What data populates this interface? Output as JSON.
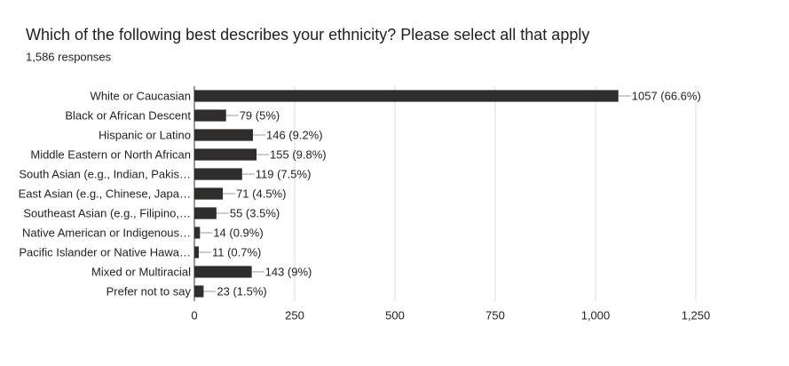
{
  "chart_data": {
    "type": "bar",
    "orientation": "horizontal",
    "title": "Which of the following best describes your ethnicity? Please select all that apply",
    "subtitle": "1,586 responses",
    "categories": [
      "White or Caucasian",
      "Black or African Descent",
      "Hispanic or Latino",
      "Middle Eastern or North African",
      "South Asian (e.g., Indian, Pakis…",
      "East Asian (e.g., Chinese, Japa…",
      "Southeast Asian (e.g., Filipino,…",
      "Native American or Indigenous…",
      "Pacific Islander or Native Hawa…",
      "Mixed or Multiracial",
      "Prefer not to say"
    ],
    "values": [
      1057,
      79,
      146,
      155,
      119,
      71,
      55,
      14,
      11,
      143,
      23
    ],
    "value_labels": [
      "1057 (66.6%)",
      "79 (5%)",
      "146 (9.2%)",
      "155 (9.8%)",
      "119 (7.5%)",
      "71 (4.5%)",
      "55 (3.5%)",
      "14 (0.9%)",
      "11 (0.7%)",
      "143 (9%)",
      "23 (1.5%)"
    ],
    "color": "#2f2c2c",
    "xlim": [
      0,
      1250
    ],
    "xticks": [
      0,
      250,
      500,
      750,
      {
        "value": 1000,
        "label": "1,000"
      },
      {
        "value": 1250,
        "label": "1,250"
      }
    ],
    "grid": true
  }
}
